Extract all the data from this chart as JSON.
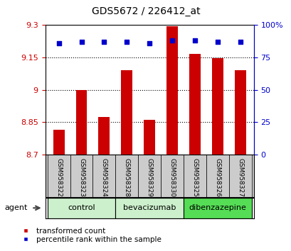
{
  "title": "GDS5672 / 226412_at",
  "samples": [
    "GSM958322",
    "GSM958323",
    "GSM958324",
    "GSM958328",
    "GSM958329",
    "GSM958330",
    "GSM958325",
    "GSM958326",
    "GSM958327"
  ],
  "bar_values": [
    8.815,
    9.0,
    8.875,
    9.09,
    8.86,
    9.295,
    9.165,
    9.145,
    9.09
  ],
  "percentile_values": [
    86,
    87,
    87,
    87,
    86,
    88,
    88,
    87,
    87
  ],
  "bar_bottom": 8.7,
  "ylim_left": [
    8.7,
    9.3
  ],
  "ylim_right": [
    0,
    100
  ],
  "yticks_left": [
    8.7,
    8.85,
    9.0,
    9.15,
    9.3
  ],
  "ytick_labels_left": [
    "8.7",
    "8.85",
    "9",
    "9.15",
    "9.3"
  ],
  "yticks_right": [
    0,
    25,
    50,
    75,
    100
  ],
  "ytick_labels_right": [
    "0",
    "25",
    "50",
    "75",
    "100%"
  ],
  "groups": [
    {
      "label": "control",
      "indices": [
        0,
        1,
        2
      ],
      "color": "#ccf0cc"
    },
    {
      "label": "bevacizumab",
      "indices": [
        3,
        4,
        5
      ],
      "color": "#ccf0cc"
    },
    {
      "label": "dibenzazepine",
      "indices": [
        6,
        7,
        8
      ],
      "color": "#55dd55"
    }
  ],
  "bar_color": "#cc0000",
  "dot_color": "#0000cc",
  "axis_left_color": "#cc0000",
  "axis_right_color": "#0000cc",
  "legend_bar_label": "transformed count",
  "legend_dot_label": "percentile rank within the sample",
  "agent_label": "agent",
  "background_color": "#ffffff",
  "plot_bg_color": "#ffffff",
  "grid_color": "#000000",
  "sample_box_color": "#cccccc",
  "bar_width": 0.5
}
